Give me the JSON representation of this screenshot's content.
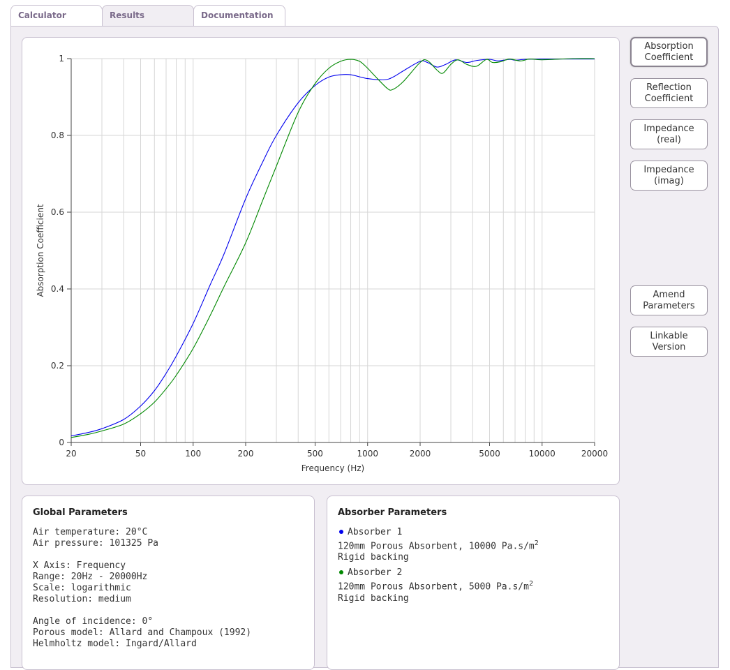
{
  "tabs": [
    {
      "label": "Calculator",
      "active": false
    },
    {
      "label": "Results",
      "active": true
    },
    {
      "label": "Documentation",
      "active": false
    }
  ],
  "side_buttons": [
    {
      "label": "Absorption Coefficient",
      "lines": [
        "Absorption",
        "Coefficient"
      ],
      "active": true
    },
    {
      "label": "Reflection Coefficient",
      "lines": [
        "Reflection",
        "Coefficient"
      ],
      "active": false
    },
    {
      "label": "Impedance (real)",
      "lines": [
        "Impedance",
        "(real)"
      ],
      "active": false
    },
    {
      "label": "Impedance (imag)",
      "lines": [
        "Impedance",
        "(imag)"
      ],
      "active": false
    },
    {
      "label": "Amend Parameters",
      "lines": [
        "Amend",
        "Parameters"
      ],
      "active": false
    },
    {
      "label": "Linkable Version",
      "lines": [
        "Linkable",
        "Version"
      ],
      "active": false
    }
  ],
  "global_parameters": {
    "title": "Global Parameters",
    "air_temperature": "Air temperature: 20°C",
    "air_pressure": "Air pressure: 101325 Pa",
    "x_axis": "X Axis: Frequency",
    "range": "Range: 20Hz - 20000Hz",
    "scale": "Scale: logarithmic",
    "resolution": "Resolution: medium",
    "angle": "Angle of incidence: 0°",
    "porous_model": "Porous model: Allard and Champoux (1992)",
    "helmholtz_model": "Helmholtz model: Ingard/Allard"
  },
  "absorber_parameters": {
    "title": "Absorber Parameters",
    "absorbers": [
      {
        "name": "Absorber 1",
        "desc": "120mm Porous Absorbent, 10000 Pa.s/m",
        "sup": "2",
        "backing": "Rigid backing",
        "color": "#0000ee"
      },
      {
        "name": "Absorber 2",
        "desc": "120mm Porous Absorbent, 5000 Pa.s/m",
        "sup": "2",
        "backing": "Rigid backing",
        "color": "#008800"
      }
    ]
  },
  "chart_data": {
    "type": "line",
    "xlabel": "Frequency (Hz)",
    "ylabel": "Absorption Coefficient",
    "xscale": "log",
    "xlim": [
      20,
      20000
    ],
    "ylim": [
      0,
      1
    ],
    "xticks": [
      20,
      50,
      100,
      200,
      500,
      1000,
      2000,
      5000,
      10000,
      20000
    ],
    "xtick_labels": [
      "20",
      "50",
      "100",
      "200",
      "500",
      "1000",
      "2000",
      "5000",
      "10000",
      "20000"
    ],
    "yticks": [
      0,
      0.2,
      0.4,
      0.6,
      0.8,
      1
    ],
    "ytick_labels": [
      "0",
      "0.2",
      "0.4",
      "0.6",
      "0.8",
      "1"
    ],
    "grid": true,
    "series": [
      {
        "name": "Absorber 1",
        "color": "#0000ee",
        "x": [
          20,
          25,
          30,
          40,
          50,
          60,
          70,
          80,
          100,
          125,
          150,
          200,
          250,
          300,
          400,
          500,
          600,
          700,
          800,
          1000,
          1250,
          1400,
          1600,
          2000,
          2200,
          2500,
          2800,
          3200,
          3700,
          4200,
          5000,
          5600,
          6500,
          7000,
          8000,
          10000,
          15000,
          20000
        ],
        "y": [
          0.017,
          0.026,
          0.036,
          0.06,
          0.095,
          0.135,
          0.18,
          0.225,
          0.31,
          0.41,
          0.49,
          0.635,
          0.73,
          0.8,
          0.885,
          0.93,
          0.952,
          0.958,
          0.958,
          0.948,
          0.945,
          0.952,
          0.968,
          0.993,
          0.99,
          0.978,
          0.985,
          0.997,
          0.99,
          0.995,
          0.998,
          0.994,
          0.998,
          0.996,
          0.998,
          0.999,
          0.999,
          0.999
        ]
      },
      {
        "name": "Absorber 2",
        "color": "#008800",
        "x": [
          20,
          25,
          30,
          40,
          50,
          60,
          70,
          80,
          100,
          125,
          150,
          200,
          250,
          300,
          400,
          500,
          600,
          700,
          800,
          900,
          1000,
          1100,
          1300,
          1400,
          1600,
          2000,
          2200,
          2500,
          2700,
          3000,
          3300,
          3700,
          4200,
          4800,
          5200,
          5800,
          6500,
          7500,
          8500,
          10000,
          15000,
          20000
        ],
        "y": [
          0.013,
          0.021,
          0.03,
          0.048,
          0.075,
          0.105,
          0.14,
          0.175,
          0.245,
          0.33,
          0.405,
          0.52,
          0.63,
          0.72,
          0.86,
          0.935,
          0.975,
          0.993,
          0.998,
          0.993,
          0.975,
          0.955,
          0.922,
          0.92,
          0.94,
          0.99,
          0.995,
          0.97,
          0.962,
          0.985,
          0.997,
          0.985,
          0.98,
          0.998,
          0.99,
          0.992,
          0.999,
          0.994,
          0.999,
          0.997,
          1.0,
          1.0
        ]
      }
    ]
  }
}
